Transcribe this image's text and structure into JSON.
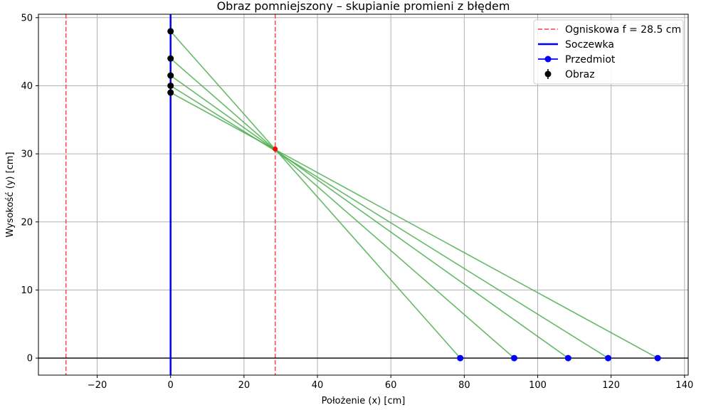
{
  "chart_data": {
    "type": "scatter",
    "title": "Obraz pomniejszony – skupianie promieni z błędem",
    "xlabel": "Położenie (x) [cm]",
    "ylabel": "Wysokość (y) [cm]",
    "xlim": [
      -36,
      141
    ],
    "ylim": [
      -2.5,
      50.5
    ],
    "x_ticks": [
      -20,
      0,
      20,
      40,
      60,
      80,
      100,
      120,
      140
    ],
    "y_ticks": [
      0,
      10,
      20,
      30,
      40,
      50
    ],
    "grid": true,
    "legend_position": "top-right",
    "focal_length": 28.5,
    "focal_lines_x": [
      -28.5,
      28.5
    ],
    "lens_x": 0,
    "focus_point": {
      "x": 28.5,
      "y": 30.7
    },
    "objects": [
      {
        "x": 78.9,
        "y": 0
      },
      {
        "x": 93.6,
        "y": 0
      },
      {
        "x": 108.3,
        "y": 0
      },
      {
        "x": 119.2,
        "y": 0
      },
      {
        "x": 132.7,
        "y": 0
      }
    ],
    "images": [
      {
        "x": 0,
        "y": 48.0
      },
      {
        "x": 0,
        "y": 44.0
      },
      {
        "x": 0,
        "y": 41.5
      },
      {
        "x": 0,
        "y": 40.0
      },
      {
        "x": 0,
        "y": 39.0
      }
    ],
    "rays": [
      {
        "from": [
          78.9,
          0
        ],
        "to": [
          0,
          48.0
        ]
      },
      {
        "from": [
          93.6,
          0
        ],
        "to": [
          0,
          44.0
        ]
      },
      {
        "from": [
          108.3,
          0
        ],
        "to": [
          0,
          41.5
        ]
      },
      {
        "from": [
          119.2,
          0
        ],
        "to": [
          0,
          40.0
        ]
      },
      {
        "from": [
          132.7,
          0
        ],
        "to": [
          0,
          39.0
        ]
      }
    ],
    "legend": [
      {
        "label": "Ogniskowa f = 28.5 cm",
        "style": "dashed-line",
        "color": "#ff3b3b"
      },
      {
        "label": "Soczewka",
        "style": "line",
        "color": "#0000ff"
      },
      {
        "label": "Przedmiot",
        "style": "line-marker",
        "color": "#0000ff"
      },
      {
        "label": "Obraz",
        "style": "errorbar-marker",
        "color": "#000000"
      }
    ],
    "colors": {
      "focal": "#ff3b3b",
      "lens": "#0000ff",
      "rays": "#4caf50",
      "object": "#0000ff",
      "image": "#000000",
      "focus_point": "#ff0000",
      "axis_line": "#000000",
      "grid": "#b0b0b0"
    }
  }
}
